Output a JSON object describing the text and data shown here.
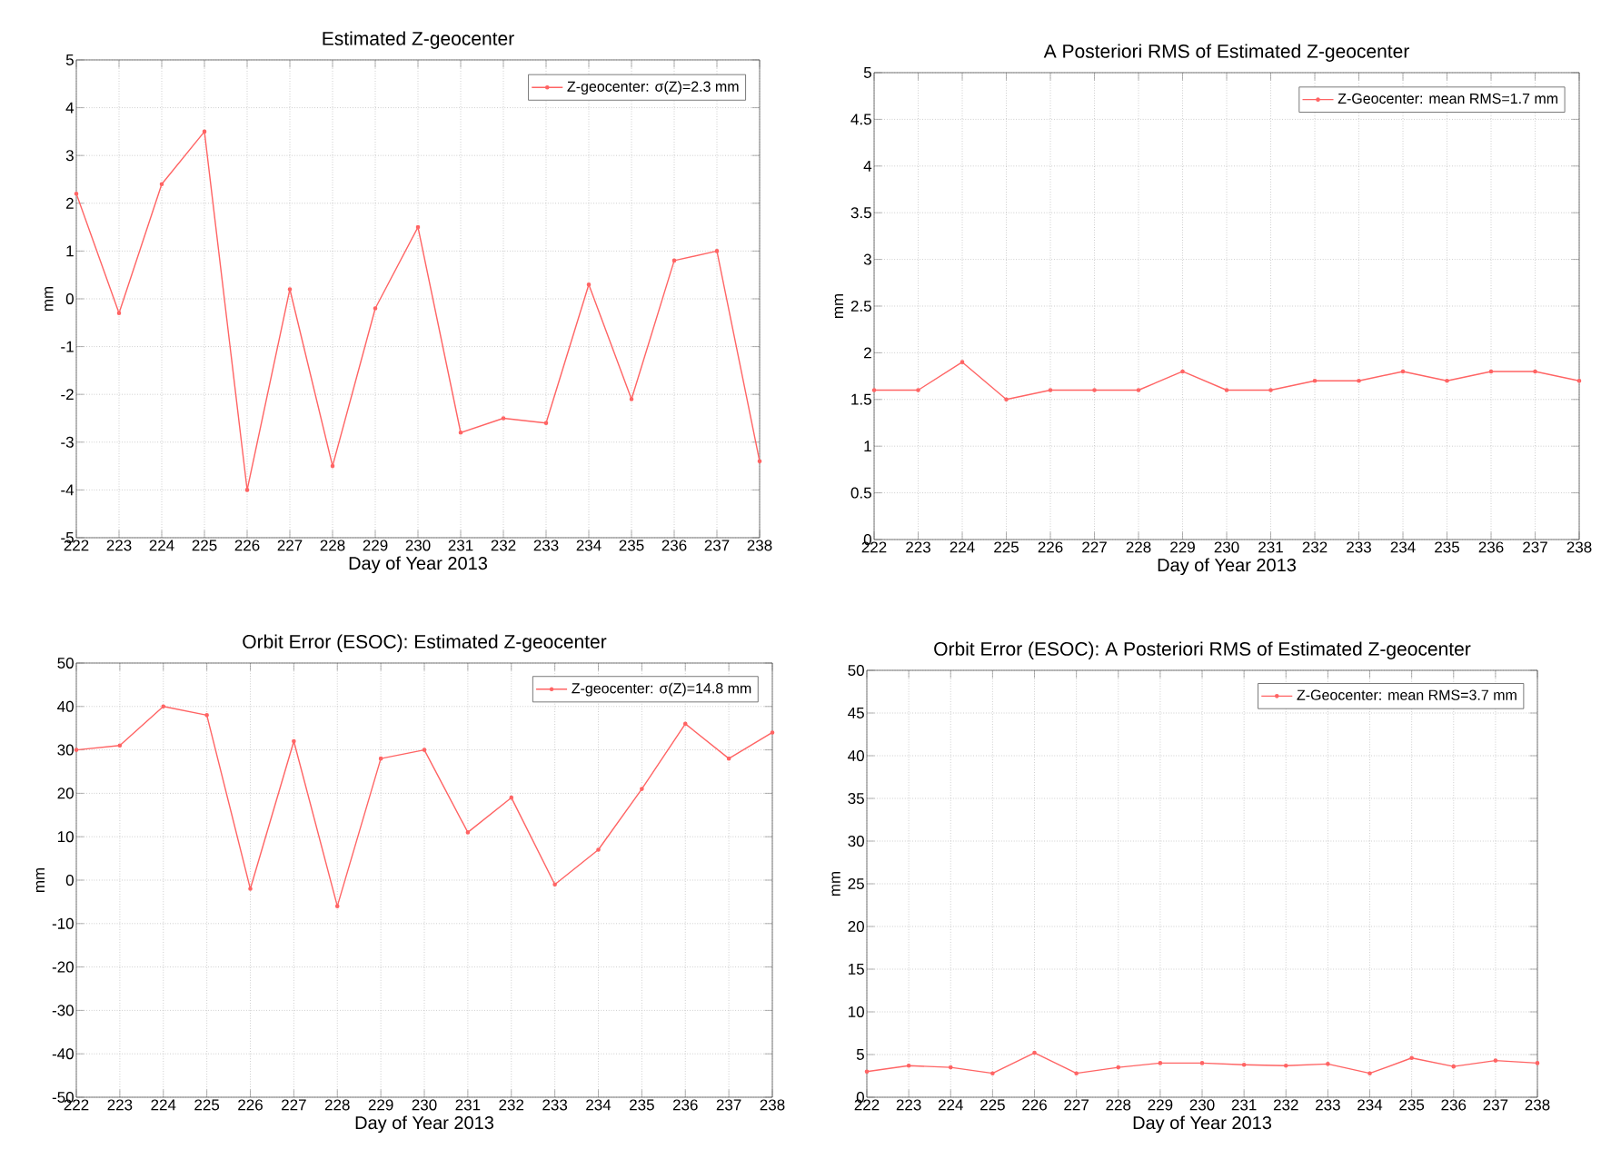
{
  "chart_data": [
    {
      "type": "line",
      "title": "Estimated Z-geocenter",
      "xlabel": "Day of Year 2013",
      "ylabel": "mm",
      "x": [
        222,
        223,
        224,
        225,
        226,
        227,
        228,
        229,
        230,
        231,
        232,
        233,
        234,
        235,
        236,
        237,
        238
      ],
      "series": [
        {
          "name": "Z-geocenter:  σ(Z)=2.3 mm",
          "color": "#ff6464",
          "values": [
            2.2,
            -0.3,
            2.4,
            3.5,
            -4.0,
            0.2,
            -3.5,
            -0.2,
            1.5,
            -2.8,
            -2.5,
            -2.6,
            0.3,
            -2.1,
            0.8,
            1.0,
            -3.4
          ]
        }
      ],
      "xlim": [
        222,
        238
      ],
      "xticks": [
        222,
        223,
        224,
        225,
        226,
        227,
        228,
        229,
        230,
        231,
        232,
        233,
        234,
        235,
        236,
        237,
        238
      ],
      "ylim": [
        -5,
        5
      ],
      "yticks": [
        -5,
        -4,
        -3,
        -2,
        -1,
        0,
        1,
        2,
        3,
        4,
        5
      ],
      "grid": true,
      "legend": "top right",
      "marker": "circle",
      "line_style": "solid"
    },
    {
      "type": "line",
      "title": "A Posteriori RMS of Estimated Z-geocenter",
      "xlabel": "Day of Year 2013",
      "ylabel": "mm",
      "x": [
        222,
        223,
        224,
        225,
        226,
        227,
        228,
        229,
        230,
        231,
        232,
        233,
        234,
        235,
        236,
        237,
        238
      ],
      "series": [
        {
          "name": "Z-Geocenter:  mean RMS=1.7 mm",
          "color": "#ff6464",
          "values": [
            1.6,
            1.6,
            1.9,
            1.5,
            1.6,
            1.6,
            1.6,
            1.8,
            1.6,
            1.6,
            1.7,
            1.7,
            1.8,
            1.7,
            1.8,
            1.8,
            1.7
          ]
        }
      ],
      "xlim": [
        222,
        238
      ],
      "xticks": [
        222,
        223,
        224,
        225,
        226,
        227,
        228,
        229,
        230,
        231,
        232,
        233,
        234,
        235,
        236,
        237,
        238
      ],
      "ylim": [
        0,
        5
      ],
      "yticks": [
        0,
        0.5,
        1,
        1.5,
        2,
        2.5,
        3,
        3.5,
        4,
        4.5,
        5
      ],
      "grid": true,
      "legend": "top right",
      "marker": "circle",
      "line_style": "solid"
    },
    {
      "type": "line",
      "title": "Orbit Error (ESOC): Estimated Z-geocenter",
      "xlabel": "Day of Year 2013",
      "ylabel": "mm",
      "x": [
        222,
        223,
        224,
        225,
        226,
        227,
        228,
        229,
        230,
        231,
        232,
        233,
        234,
        235,
        236,
        237,
        238
      ],
      "series": [
        {
          "name": "Z-geocenter:  σ(Z)=14.8 mm",
          "color": "#ff6464",
          "values": [
            30,
            31,
            40,
            38,
            -2,
            32,
            -6,
            28,
            30,
            11,
            19,
            -1,
            7,
            21,
            36,
            28,
            34
          ]
        }
      ],
      "xlim": [
        222,
        238
      ],
      "xticks": [
        222,
        223,
        224,
        225,
        226,
        227,
        228,
        229,
        230,
        231,
        232,
        233,
        234,
        235,
        236,
        237,
        238
      ],
      "ylim": [
        -50,
        50
      ],
      "yticks": [
        -50,
        -40,
        -30,
        -20,
        -10,
        0,
        10,
        20,
        30,
        40,
        50
      ],
      "grid": true,
      "legend": "top right",
      "marker": "circle",
      "line_style": "solid"
    },
    {
      "type": "line",
      "title": "Orbit Error (ESOC): A Posteriori RMS of Estimated Z-geocenter",
      "xlabel": "Day of Year 2013",
      "ylabel": "mm",
      "x": [
        222,
        223,
        224,
        225,
        226,
        227,
        228,
        229,
        230,
        231,
        232,
        233,
        234,
        235,
        236,
        237,
        238
      ],
      "series": [
        {
          "name": "Z-Geocenter:  mean RMS=3.7 mm",
          "color": "#ff6464",
          "values": [
            3.0,
            3.7,
            3.5,
            2.8,
            5.2,
            2.8,
            3.5,
            4.0,
            4.0,
            3.8,
            3.7,
            3.9,
            2.8,
            4.6,
            3.6,
            4.3,
            4.0
          ]
        }
      ],
      "xlim": [
        222,
        238
      ],
      "xticks": [
        222,
        223,
        224,
        225,
        226,
        227,
        228,
        229,
        230,
        231,
        232,
        233,
        234,
        235,
        236,
        237,
        238
      ],
      "ylim": [
        0,
        50
      ],
      "yticks": [
        0,
        5,
        10,
        15,
        20,
        25,
        30,
        35,
        40,
        45,
        50
      ],
      "grid": true,
      "legend": "top right",
      "marker": "circle",
      "line_style": "solid"
    }
  ]
}
